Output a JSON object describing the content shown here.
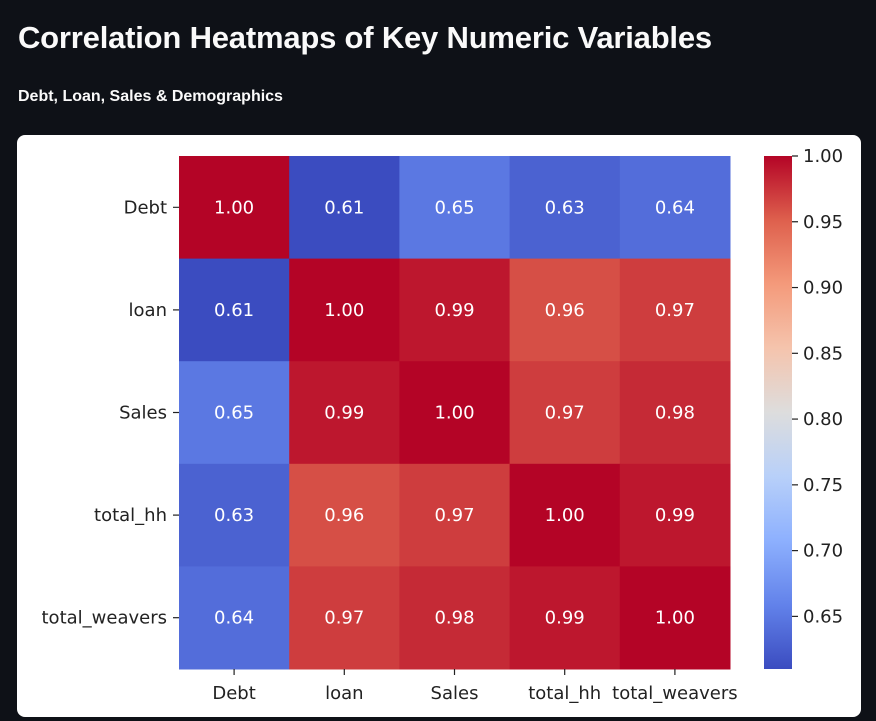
{
  "header": {
    "title": "Correlation Heatmaps of Key Numeric Variables",
    "subtitle": "Debt, Loan, Sales & Demographics"
  },
  "chart_data": {
    "type": "heatmap",
    "colormap": "coolwarm",
    "title": "",
    "xlabel": "",
    "ylabel": "",
    "x_labels": [
      "Debt",
      "loan",
      "Sales",
      "total_hh",
      "total_weavers"
    ],
    "y_labels": [
      "Debt",
      "loan",
      "Sales",
      "total_hh",
      "total_weavers"
    ],
    "values": [
      [
        1.0,
        0.61,
        0.65,
        0.63,
        0.64
      ],
      [
        0.61,
        1.0,
        0.99,
        0.96,
        0.97
      ],
      [
        0.65,
        0.99,
        1.0,
        0.97,
        0.98
      ],
      [
        0.63,
        0.96,
        0.97,
        1.0,
        0.99
      ],
      [
        0.64,
        0.97,
        0.98,
        0.99,
        1.0
      ]
    ],
    "value_format": "0.00",
    "colorbar": {
      "range": [
        0.61,
        1.0
      ],
      "ticks": [
        0.65,
        0.7,
        0.75,
        0.8,
        0.85,
        0.9,
        0.95,
        1.0
      ],
      "tick_labels": [
        "0.65",
        "0.70",
        "0.75",
        "0.80",
        "0.85",
        "0.90",
        "0.95",
        "1.00"
      ]
    },
    "grid": false
  }
}
